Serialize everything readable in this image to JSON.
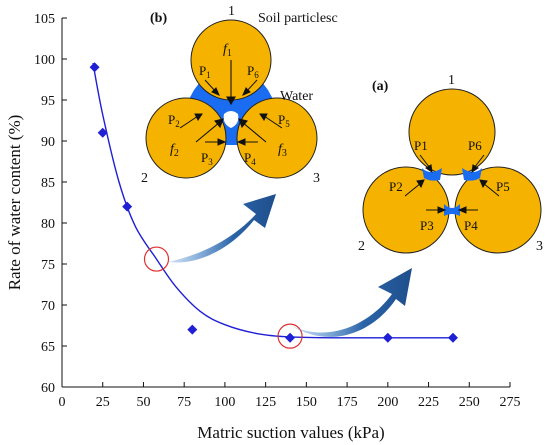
{
  "chart_data": {
    "type": "scatter",
    "xlabel": "Matric suction values (kPa)",
    "ylabel": "Rate of water content (%)",
    "xlim": [
      0,
      275
    ],
    "ylim": [
      60,
      105
    ],
    "xticks": [
      0,
      25,
      50,
      75,
      100,
      125,
      150,
      175,
      200,
      225,
      250,
      275
    ],
    "yticks": [
      60,
      65,
      70,
      75,
      80,
      85,
      90,
      95,
      100,
      105
    ],
    "marker_color": "#1f1fd6",
    "series": [
      {
        "points": [
          {
            "x": 20,
            "y": 99
          },
          {
            "x": 25,
            "y": 91
          },
          {
            "x": 40,
            "y": 82
          },
          {
            "x": 80,
            "y": 67
          },
          {
            "x": 140,
            "y": 66
          },
          {
            "x": 200,
            "y": 66
          },
          {
            "x": 240,
            "y": 66
          }
        ]
      }
    ],
    "fit_curve": [
      {
        "x": 19,
        "y": 99.5
      },
      {
        "x": 25,
        "y": 93.2
      },
      {
        "x": 35,
        "y": 85.0
      },
      {
        "x": 45,
        "y": 79.6
      },
      {
        "x": 58,
        "y": 75.6
      },
      {
        "x": 70,
        "y": 72.2
      },
      {
        "x": 85,
        "y": 69.2
      },
      {
        "x": 100,
        "y": 67.6
      },
      {
        "x": 120,
        "y": 66.5
      },
      {
        "x": 140,
        "y": 66.1
      },
      {
        "x": 170,
        "y": 66.0
      },
      {
        "x": 240,
        "y": 66.0
      }
    ],
    "highlight_circles": [
      {
        "x": 58,
        "y": 75.6
      },
      {
        "x": 140,
        "y": 66.2
      }
    ],
    "insets": {
      "b": {
        "label": "(b)",
        "caption": "Soil particlesc",
        "water_label": "Water",
        "particles": [
          "1",
          "2",
          "3"
        ],
        "forces": [
          "P",
          "P",
          "P",
          "P",
          "P",
          "P"
        ],
        "force_subscripts": [
          "1",
          "2",
          "3",
          "4",
          "5",
          "6"
        ],
        "f_labels": [
          "f",
          "f",
          "f"
        ],
        "f_subscripts": [
          "1",
          "2",
          "3"
        ]
      },
      "a": {
        "label": "(a)",
        "particles": [
          "1",
          "2",
          "3"
        ],
        "forces": [
          "P1",
          "P2",
          "P3",
          "P4",
          "P5",
          "P6"
        ]
      }
    },
    "colors": {
      "particle_fill": "#f5b300",
      "particle_stroke": "#222222",
      "water": "#1a6cf0",
      "arrow": "#1f4e8c",
      "circle": "#e03030"
    }
  }
}
